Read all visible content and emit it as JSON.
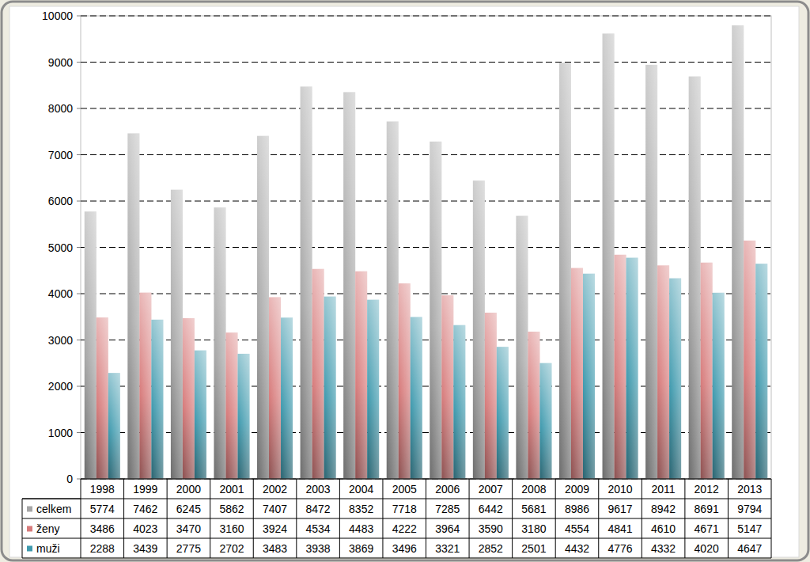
{
  "chart_data": {
    "type": "bar",
    "categories": [
      "1998",
      "1999",
      "2000",
      "2001",
      "2002",
      "2003",
      "2004",
      "2005",
      "2006",
      "2007",
      "2008",
      "2009",
      "2010",
      "2011",
      "2012",
      "2013"
    ],
    "series": [
      {
        "name": "celkem",
        "color": "#a6a6a6",
        "values": [
          5774,
          7462,
          6245,
          5862,
          7407,
          8472,
          8352,
          7718,
          7285,
          6442,
          5681,
          8986,
          9617,
          8942,
          8691,
          9794
        ]
      },
      {
        "name": "ženy",
        "color": "#d77b7b",
        "values": [
          3486,
          4023,
          3470,
          3160,
          3924,
          4534,
          4483,
          4222,
          3964,
          3590,
          3180,
          4554,
          4841,
          4610,
          4671,
          5147
        ]
      },
      {
        "name": "muži",
        "color": "#3f9aae",
        "values": [
          2288,
          3439,
          2775,
          2702,
          3483,
          3938,
          3869,
          3496,
          3321,
          2852,
          2501,
          4432,
          4776,
          4332,
          4020,
          4647
        ]
      }
    ],
    "ylim": [
      0,
      10000
    ],
    "yticks": [
      0,
      1000,
      2000,
      3000,
      4000,
      5000,
      6000,
      7000,
      8000,
      9000,
      10000
    ],
    "grid": true
  }
}
